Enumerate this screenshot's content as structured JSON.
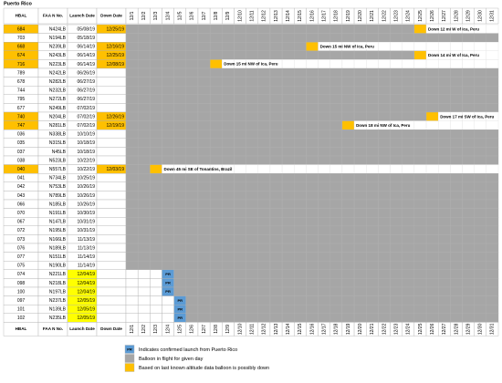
{
  "title": "Puerto Rico",
  "table": {
    "columns": [
      "HBAL",
      "FAA N No.",
      "Launch Date",
      "Down Date"
    ],
    "days": [
      "12/1",
      "12/2",
      "12/3",
      "12/4",
      "12/5",
      "12/6",
      "12/7",
      "12/8",
      "12/9",
      "12/10",
      "12/11",
      "12/12",
      "12/13",
      "12/14",
      "12/15",
      "12/16",
      "12/17",
      "12/18",
      "12/19",
      "12/20",
      "12/21",
      "12/22",
      "12/23",
      "12/24",
      "12/25",
      "12/26",
      "12/27",
      "12/28",
      "12/29",
      "12/30",
      "12/31"
    ],
    "rows": [
      {
        "hbal": "684",
        "faa_no": "N424LB",
        "launch_date": "05/08/19",
        "down_date": "12/25/19",
        "note": "Down 12 mi W of Ica, Peru"
      },
      {
        "hbal": "703",
        "faa_no": "N194LB",
        "launch_date": "05/18/19"
      },
      {
        "hbal": "668",
        "faa_no": "N239LB",
        "launch_date": "06/14/19",
        "down_date": "12/16/19",
        "note": "Down 15 mi NW of Ica, Peru"
      },
      {
        "hbal": "674",
        "faa_no": "N243LB",
        "launch_date": "06/14/19",
        "down_date": "12/25/19",
        "note": "Down 14 mi W of Ica, Peru"
      },
      {
        "hbal": "716",
        "faa_no": "N223LB",
        "launch_date": "06/14/19",
        "down_date": "12/08/19",
        "note": "Down 15 mi NW of Ica, Peru"
      },
      {
        "hbal": "789",
        "faa_no": "N242LB",
        "launch_date": "06/26/19"
      },
      {
        "hbal": "678",
        "faa_no": "N282LB",
        "launch_date": "06/27/19"
      },
      {
        "hbal": "744",
        "faa_no": "N232LB",
        "launch_date": "06/27/19"
      },
      {
        "hbal": "795",
        "faa_no": "N272LB",
        "launch_date": "06/27/19"
      },
      {
        "hbal": "677",
        "faa_no": "N249LB",
        "launch_date": "07/02/19"
      },
      {
        "hbal": "740",
        "faa_no": "N204LB",
        "launch_date": "07/02/19",
        "down_date": "12/26/19",
        "note": "Down 17 mi SW of Ica, Peru"
      },
      {
        "hbal": "747",
        "faa_no": "N281LB",
        "launch_date": "07/02/19",
        "down_date": "12/19/19",
        "note": "Down 18 mi NW of Ica, Peru"
      },
      {
        "hbal": "036",
        "faa_no": "N338LB",
        "launch_date": "10/10/19"
      },
      {
        "hbal": "035",
        "faa_no": "N315LB",
        "launch_date": "10/18/19"
      },
      {
        "hbal": "037",
        "faa_no": "N45LB",
        "launch_date": "10/18/19"
      },
      {
        "hbal": "038",
        "faa_no": "N523LB",
        "launch_date": "10/22/19"
      },
      {
        "hbal": "040",
        "faa_no": "N557LB",
        "launch_date": "10/22/19",
        "down_date": "12/03/19",
        "note": "Down 45 mi SE of Tonantins, Brazil"
      },
      {
        "hbal": "041",
        "faa_no": "N734LB",
        "launch_date": "10/25/19"
      },
      {
        "hbal": "042",
        "faa_no": "N753LB",
        "launch_date": "10/26/19"
      },
      {
        "hbal": "043",
        "faa_no": "N789LB",
        "launch_date": "10/26/19"
      },
      {
        "hbal": "066",
        "faa_no": "N185LB",
        "launch_date": "10/26/19"
      },
      {
        "hbal": "070",
        "faa_no": "N191LB",
        "launch_date": "10/30/19"
      },
      {
        "hbal": "067",
        "faa_no": "N147LB",
        "launch_date": "10/31/19"
      },
      {
        "hbal": "072",
        "faa_no": "N195LB",
        "launch_date": "10/31/19"
      },
      {
        "hbal": "073",
        "faa_no": "N166LB",
        "launch_date": "11/13/19"
      },
      {
        "hbal": "076",
        "faa_no": "N189LB",
        "launch_date": "11/13/19"
      },
      {
        "hbal": "077",
        "faa_no": "N151LB",
        "launch_date": "11/14/19"
      },
      {
        "hbal": "075",
        "faa_no": "N190LB",
        "launch_date": "11/14/19"
      },
      {
        "hbal": "074",
        "faa_no": "N221LB",
        "launch_date": "12/04/19"
      },
      {
        "hbal": "098",
        "faa_no": "N218LB",
        "launch_date": "12/04/19"
      },
      {
        "hbal": "100",
        "faa_no": "N197LB",
        "launch_date": "12/04/19"
      },
      {
        "hbal": "097",
        "faa_no": "N237LB",
        "launch_date": "12/05/19"
      },
      {
        "hbal": "101",
        "faa_no": "N139LB",
        "launch_date": "12/05/19"
      },
      {
        "hbal": "102",
        "faa_no": "N235LB",
        "launch_date": "12/05/19"
      }
    ]
  },
  "legend": {
    "launch_marker": "PR",
    "launch": "Indicates confirmed launch from Puerto Rico",
    "in_flight": "Balloon in flight for given day",
    "down": "Based on last known altitude data balloon is possibly down"
  }
}
